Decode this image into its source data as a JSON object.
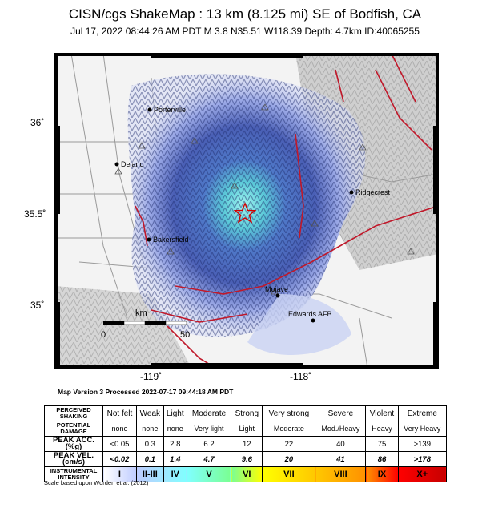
{
  "header": {
    "title": "CISN/cgs ShakeMap : 13 km (8.125 mi) SE of Bodfish, CA",
    "subtitle": "Jul 17, 2022 08:44:26 AM PDT   M 3.8   N35.51 W118.39   Depth: 4.7km   ID:40065255"
  },
  "map": {
    "lat_ticks": [
      "36˚",
      "35.5˚",
      "35˚"
    ],
    "lon_ticks": [
      "-119˚",
      "-118˚"
    ],
    "cities": [
      {
        "name": "Porterville"
      },
      {
        "name": "Delano"
      },
      {
        "name": "Ridgecrest"
      },
      {
        "name": "Bakersfield"
      },
      {
        "name": "Mojave"
      },
      {
        "name": "Edwards AFB"
      }
    ],
    "scale_bar": {
      "unit": "km",
      "start": "0",
      "end": "50"
    },
    "epicenter_color": "#d40000"
  },
  "version_text": "Map Version 3 Processed 2022-07-17 09:44:18 AM PDT",
  "legend": {
    "shaking_header": "PERCEIVED SHAKING",
    "damage_header": "POTENTIAL DAMAGE",
    "acc_header": "PEAK ACC.(%g)",
    "vel_header": "PEAK VEL.(cm/s)",
    "intensity_header": "INSTRUMENTAL INTENSITY",
    "shaking": [
      "Not felt",
      "Weak",
      "Light",
      "Moderate",
      "Strong",
      "Very strong",
      "Severe",
      "Violent",
      "Extreme"
    ],
    "damage": [
      "none",
      "none",
      "none",
      "Very light",
      "Light",
      "Moderate",
      "Mod./Heavy",
      "Heavy",
      "Very Heavy"
    ],
    "acc": [
      "<0.05",
      "0.3",
      "2.8",
      "6.2",
      "12",
      "22",
      "40",
      "75",
      ">139"
    ],
    "vel": [
      "<0.02",
      "0.1",
      "1.4",
      "4.7",
      "9.6",
      "20",
      "41",
      "86",
      ">178"
    ],
    "intensity": [
      "I",
      "II-III",
      "IV",
      "V",
      "VI",
      "VII",
      "VIII",
      "IX",
      "X+"
    ],
    "intensity_colors": [
      "#ffffff",
      "#bfccff",
      "#a0e6ff",
      "#80ffff",
      "#7aff93",
      "#ffff00",
      "#ffc800",
      "#ff9100",
      "#ff0000",
      "#c80000"
    ]
  },
  "scale_note": "Scale based upon Worden et al. (2012)"
}
